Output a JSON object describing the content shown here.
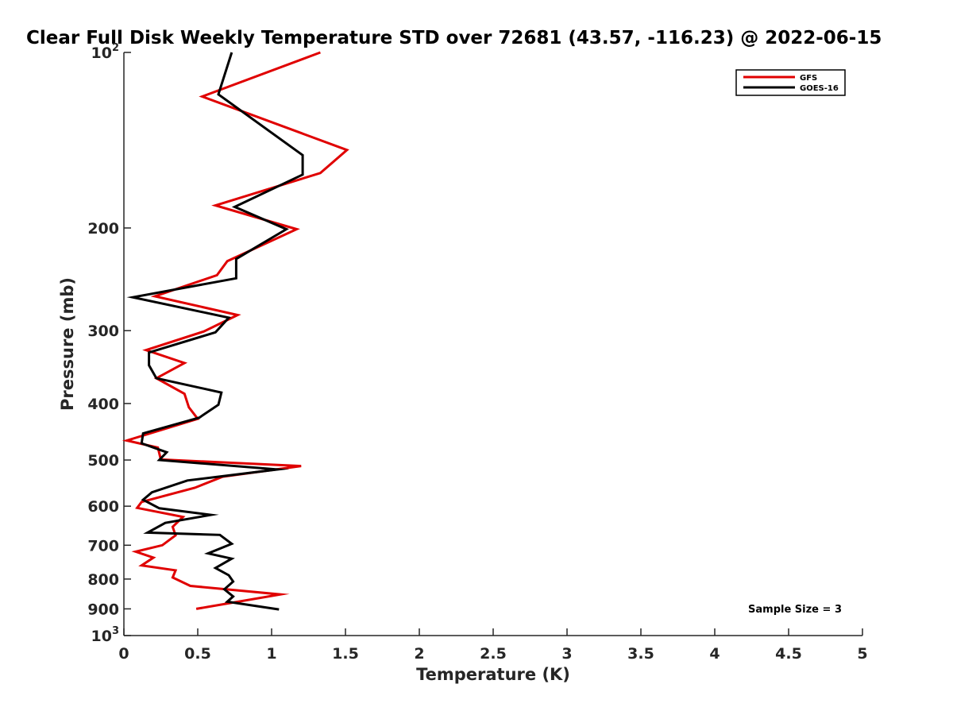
{
  "chart_data": {
    "type": "line",
    "title": "Clear Full Disk Weekly Temperature STD over 72681 (43.57, -116.23) @ 2022-06-15",
    "xlabel": "Temperature (K)",
    "ylabel": "Pressure (mb)",
    "xlim": [
      0,
      5
    ],
    "ylim": [
      100,
      1000
    ],
    "y_scale": "log",
    "y_reversed": true,
    "grid": false,
    "legend_position": "top-right",
    "x_ticks": [
      0,
      0.5,
      1,
      1.5,
      2,
      2.5,
      3,
      3.5,
      4,
      4.5,
      5
    ],
    "x_tick_labels": [
      "0",
      "0.5",
      "1",
      "1.5",
      "2",
      "2.5",
      "3",
      "3.5",
      "4",
      "4.5",
      "5"
    ],
    "y_ticks": [
      {
        "value": 100,
        "base": "10",
        "exp": "2"
      },
      {
        "value": 200,
        "label": "200"
      },
      {
        "value": 300,
        "label": "300"
      },
      {
        "value": 400,
        "label": "400"
      },
      {
        "value": 500,
        "label": "500"
      },
      {
        "value": 600,
        "label": "600"
      },
      {
        "value": 700,
        "label": "700"
      },
      {
        "value": 800,
        "label": "800"
      },
      {
        "value": 900,
        "label": "900"
      },
      {
        "value": 1000,
        "base": "10",
        "exp": "3"
      }
    ],
    "annotation": "Sample Size = 3",
    "series": [
      {
        "name": "GFS",
        "color": "#e00000",
        "points": [
          [
            1.33,
            100
          ],
          [
            0.53,
            119
          ],
          [
            1.51,
            147
          ],
          [
            1.33,
            161
          ],
          [
            0.62,
            183
          ],
          [
            1.17,
            201
          ],
          [
            0.7,
            228
          ],
          [
            0.63,
            241
          ],
          [
            0.21,
            262
          ],
          [
            0.77,
            282
          ],
          [
            0.54,
            301
          ],
          [
            0.15,
            324
          ],
          [
            0.41,
            341
          ],
          [
            0.22,
            362
          ],
          [
            0.41,
            385
          ],
          [
            0.44,
            406
          ],
          [
            0.5,
            425
          ],
          [
            0.02,
            463
          ],
          [
            0.23,
            476
          ],
          [
            0.25,
            499
          ],
          [
            1.2,
            512
          ],
          [
            0.67,
            534
          ],
          [
            0.48,
            558
          ],
          [
            0.12,
            590
          ],
          [
            0.09,
            604
          ],
          [
            0.4,
            626
          ],
          [
            0.33,
            651
          ],
          [
            0.35,
            673
          ],
          [
            0.26,
            700
          ],
          [
            0.08,
            718
          ],
          [
            0.2,
            735
          ],
          [
            0.12,
            758
          ],
          [
            0.35,
            773
          ],
          [
            0.33,
            795
          ],
          [
            0.45,
            822
          ],
          [
            1.06,
            850
          ],
          [
            0.49,
            900
          ]
        ]
      },
      {
        "name": "GOES-16",
        "color": "#000000",
        "points": [
          [
            0.73,
            100
          ],
          [
            0.64,
            118
          ],
          [
            1.21,
            150
          ],
          [
            1.21,
            162
          ],
          [
            0.75,
            184
          ],
          [
            1.1,
            201
          ],
          [
            0.76,
            226
          ],
          [
            0.76,
            244
          ],
          [
            0.06,
            263
          ],
          [
            0.71,
            285
          ],
          [
            0.62,
            302
          ],
          [
            0.17,
            327
          ],
          [
            0.17,
            344
          ],
          [
            0.22,
            362
          ],
          [
            0.66,
            383
          ],
          [
            0.64,
            402
          ],
          [
            0.51,
            423
          ],
          [
            0.13,
            450
          ],
          [
            0.12,
            468
          ],
          [
            0.29,
            485
          ],
          [
            0.24,
            500
          ],
          [
            1.04,
            519
          ],
          [
            0.43,
            542
          ],
          [
            0.19,
            568
          ],
          [
            0.13,
            585
          ],
          [
            0.24,
            605
          ],
          [
            0.59,
            621
          ],
          [
            0.28,
            641
          ],
          [
            0.16,
            666
          ],
          [
            0.65,
            672
          ],
          [
            0.73,
            696
          ],
          [
            0.57,
            723
          ],
          [
            0.73,
            738
          ],
          [
            0.62,
            766
          ],
          [
            0.71,
            788
          ],
          [
            0.74,
            808
          ],
          [
            0.68,
            833
          ],
          [
            0.74,
            857
          ],
          [
            0.7,
            875
          ],
          [
            1.05,
            902
          ]
        ]
      }
    ]
  }
}
